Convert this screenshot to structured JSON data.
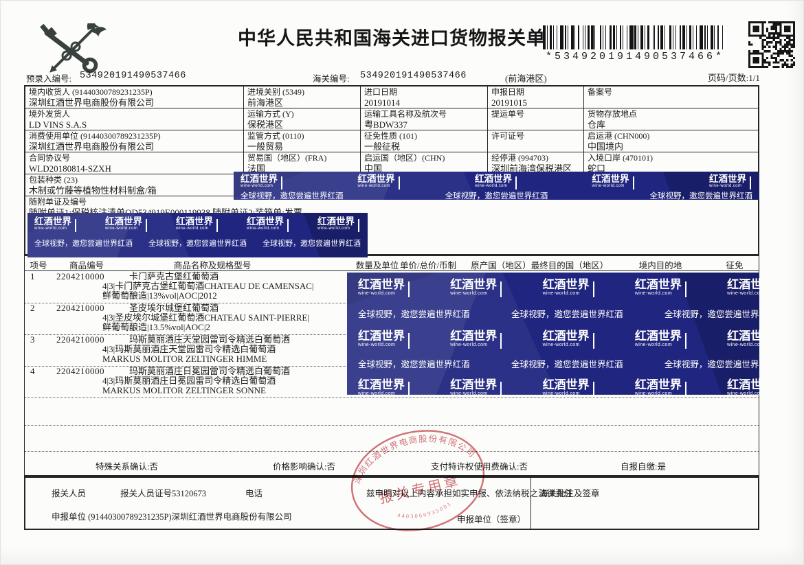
{
  "header": {
    "title": "中华人民共和国海关进口货物报关单",
    "barcode_text": "*534920191490537466*",
    "pre_entry_label": "预录入编号:",
    "pre_entry_no": "534920191490537466",
    "customs_no_label": "海关编号:",
    "customs_no": "534920191490537466",
    "customs_area": "(前海港区)",
    "page_label": "页码/页数:1/1"
  },
  "info": {
    "rows": [
      {
        "cells": [
          {
            "label": "境内收货人 (91440300789231235P)",
            "value": "深圳红酒世界电商股份有限公司"
          },
          {
            "label": "进境关别 (5349)",
            "value": "前海港区"
          },
          {
            "label": "进口日期",
            "value": "20191014"
          },
          {
            "label": "申报日期",
            "value": "20191015"
          },
          {
            "label": "备案号",
            "value": ""
          }
        ]
      },
      {
        "cells": [
          {
            "label": "境外发货人",
            "value": "LD VINS S.A.S"
          },
          {
            "label": "运输方式 (Y)",
            "value": "保税港区"
          },
          {
            "label": "运输工具名称及航次号",
            "value": "粤BDW337"
          },
          {
            "label": "提运单号",
            "value": ""
          },
          {
            "label": "货物存放地点",
            "value": "仓库"
          }
        ]
      },
      {
        "cells": [
          {
            "label": "消费使用单位 (91440300789231235P)",
            "value": "深圳红酒世界电商股份有限公司"
          },
          {
            "label": "监管方式 (0110)",
            "value": "一般贸易"
          },
          {
            "label": "征免性质 (101)",
            "value": "一般征税"
          },
          {
            "label": "许可证号",
            "value": ""
          },
          {
            "label": "启运港 (CHN000)",
            "value": "中国境内"
          }
        ]
      },
      {
        "cells": [
          {
            "label": "合同协议号",
            "value": "WLD20180814-SZXH"
          },
          {
            "label": "贸易国（地区）(FRA)",
            "value": "法国"
          },
          {
            "label": "启运国（地区）(CHN)",
            "value": "中国"
          },
          {
            "label": "经停港 (994703)",
            "value": "深圳前海湾保税港区"
          },
          {
            "label": "入境口岸 (470101)",
            "value": "蛇口"
          }
        ]
      }
    ],
    "packing": {
      "label": "包装种类 (23)",
      "value": "木制或竹藤等植物性材料制盒/箱"
    },
    "documents": {
      "label": "随附单证及编号",
      "value": "随附单证1:保税核注清单QD534919E000119938 随附单证2:装箱单;发票"
    }
  },
  "goods": {
    "columns": [
      "项号",
      "商品编号",
      "商品名称及规格型号",
      "数量及单位",
      "单价/总价/币制",
      "原产国（地区）",
      "最终目的国（地区）",
      "境内目的地",
      "征免"
    ],
    "items": [
      {
        "no": "1",
        "code": "2204210000",
        "name": "卡门萨克古堡红葡萄酒",
        "spec1": "4|3|卡门萨克古堡红葡萄酒CHATEAU DE CAMENSAC|",
        "spec2": "鲜葡萄酿造|13%vol|AOC|2012"
      },
      {
        "no": "2",
        "code": "2204210000",
        "name": "圣皮埃尔城堡红葡萄酒",
        "spec1": "4|3|圣皮埃尔城堡红葡萄酒CHATEAU SAINT-PIERRE|",
        "spec2": "鲜葡萄酿造|13.5%vol|AOC|2"
      },
      {
        "no": "3",
        "code": "2204210000",
        "name": "玛斯莫丽酒庄天堂园雷司令精选白葡萄酒",
        "spec1": "4|3|玛斯莫丽酒庄天堂园雷司令精选白葡萄酒",
        "spec2": "MARKUS MOLITOR ZELTINGER HIMME"
      },
      {
        "no": "4",
        "code": "2204210000",
        "name": "玛斯莫丽酒庄日冕园雷司令精选白葡萄酒",
        "spec1": "4|3|玛斯莫丽酒庄日冕园雷司令精选白葡萄酒",
        "spec2": "MARKUS MOLITOR ZELTINGER SONNE"
      }
    ]
  },
  "confirmations": [
    "特殊关系确认:否",
    "价格影响确认:否",
    "支付特许权使用费确认:否",
    "自报自缴:是"
  ],
  "footer": {
    "agent_label": "报关人员",
    "agent_cert": "报关人员证号53120673",
    "phone_label": "电话",
    "declaration": "兹申明对以上内容承担如实申报、依法纳税之法律责任",
    "declare_unit": "申报单位 (91440300789231235P)深圳红酒世界电商股份有限公司",
    "sign_label": "申报单位（签章）",
    "customs_remarks_label": "海关批注及签章"
  },
  "watermark": {
    "logo": "红酒世界",
    "logo_sub": "wine-world.com",
    "slogan": "全球视野，邀您尝遍世界红酒",
    "band_color": "#20267f"
  },
  "stamp": {
    "company": "深圳红酒世界电商股份有限公司",
    "title": "报关专用章",
    "number": "4403060935001",
    "color": "#c9565d"
  }
}
